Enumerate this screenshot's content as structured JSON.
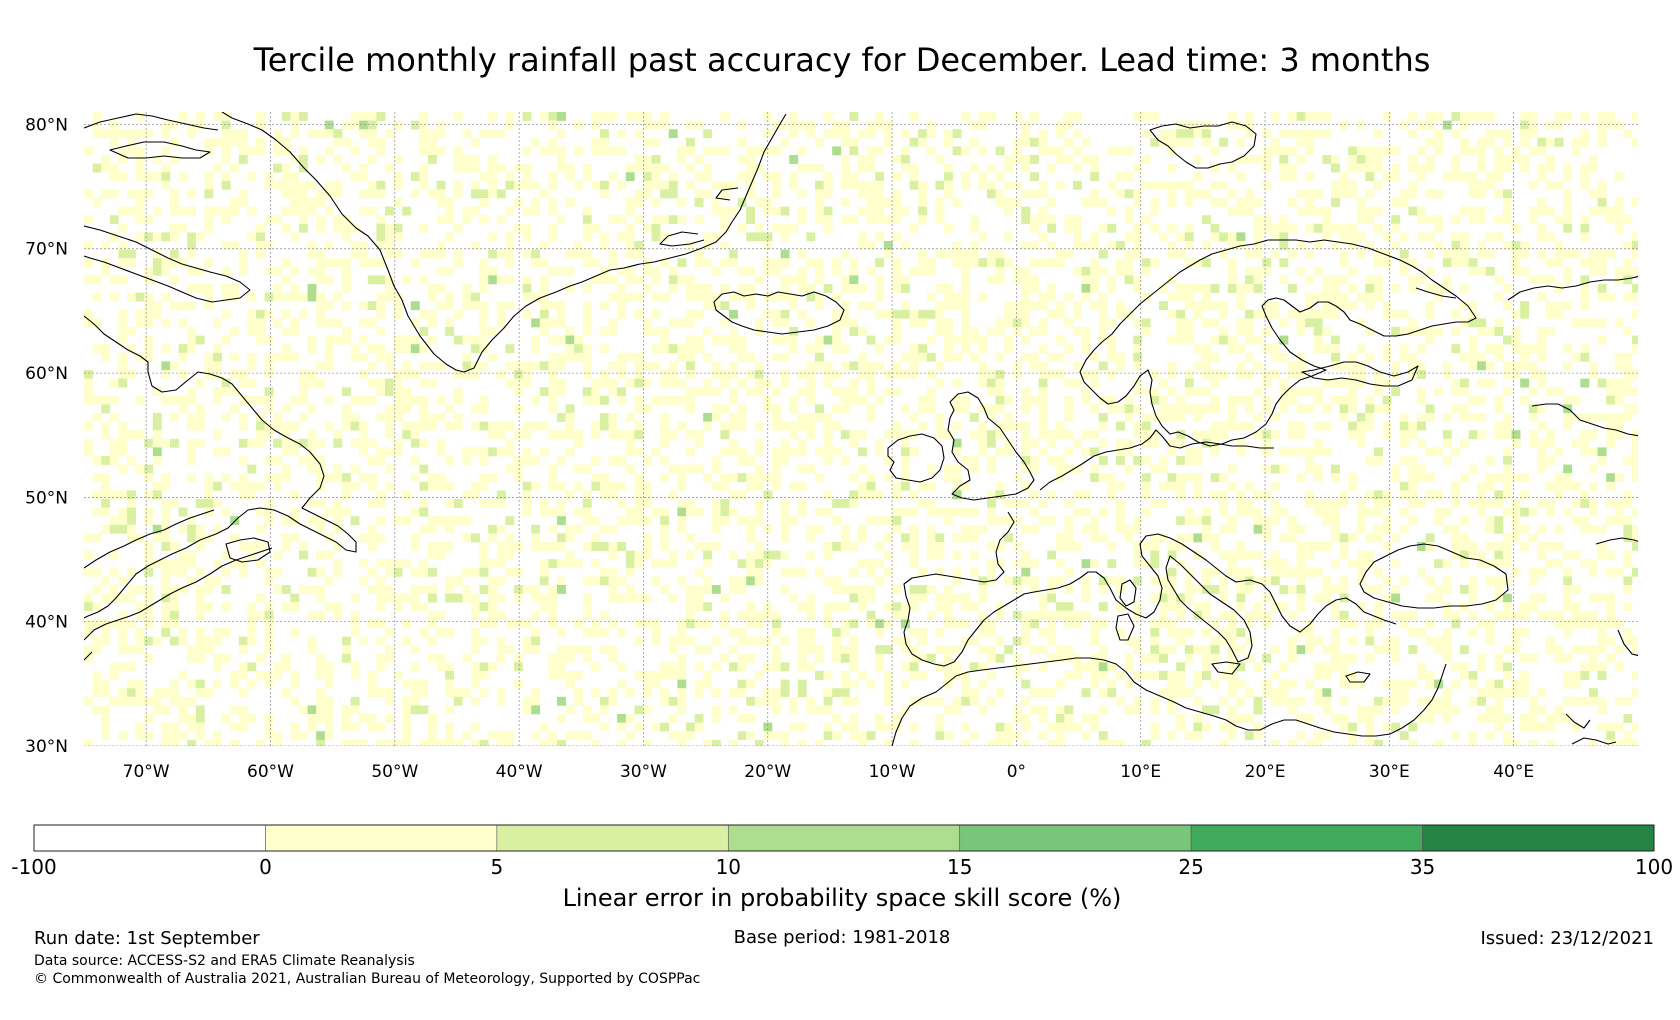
{
  "title": "Tercile monthly rainfall past accuracy for December. Lead time: 3 months",
  "map": {
    "lon_range": [
      -75,
      50
    ],
    "lat_range": [
      30,
      81
    ],
    "lon_ticks": [
      {
        "value": -70,
        "label": "70°W"
      },
      {
        "value": -60,
        "label": "60°W"
      },
      {
        "value": -50,
        "label": "50°W"
      },
      {
        "value": -40,
        "label": "40°W"
      },
      {
        "value": -30,
        "label": "30°W"
      },
      {
        "value": -20,
        "label": "20°W"
      },
      {
        "value": -10,
        "label": "10°W"
      },
      {
        "value": 0,
        "label": "0°"
      },
      {
        "value": 10,
        "label": "10°E"
      },
      {
        "value": 20,
        "label": "20°E"
      },
      {
        "value": 30,
        "label": "30°E"
      },
      {
        "value": 40,
        "label": "40°E"
      }
    ],
    "lat_ticks": [
      {
        "value": 80,
        "label": "80°N"
      },
      {
        "value": 70,
        "label": "70°N"
      },
      {
        "value": 60,
        "label": "60°N"
      },
      {
        "value": 50,
        "label": "50°N"
      },
      {
        "value": 40,
        "label": "40°N"
      },
      {
        "value": 30,
        "label": "30°N"
      }
    ],
    "grid": true,
    "coastlines": [
      "greenland",
      "canada-east",
      "canada-arctic",
      "iceland",
      "svalbard",
      "ireland",
      "great-britain",
      "scandinavia",
      "europe-mainland",
      "italy",
      "black-sea",
      "north-africa",
      "russia-north"
    ]
  },
  "colorbar": {
    "ticks": [
      "-100",
      "0",
      "5",
      "10",
      "15",
      "25",
      "35",
      "100"
    ],
    "colors": [
      "#ffffff",
      "#ffffcc",
      "#d9f0a3",
      "#addd8e",
      "#78c679",
      "#41ab5d",
      "#238443"
    ],
    "label": "Linear error in probability space skill score (%)"
  },
  "footer": {
    "run_date": "Run date: 1st September",
    "base_period": "Base period: 1981-2018",
    "issued": "Issued: 23/12/2021",
    "data_source": "Data source: ACCESS-S2 and ERA5 Climate Reanalysis",
    "copyright": "© Commonwealth of Australia 2021, Australian Bureau of Meteorology, Supported by COSPPac"
  }
}
